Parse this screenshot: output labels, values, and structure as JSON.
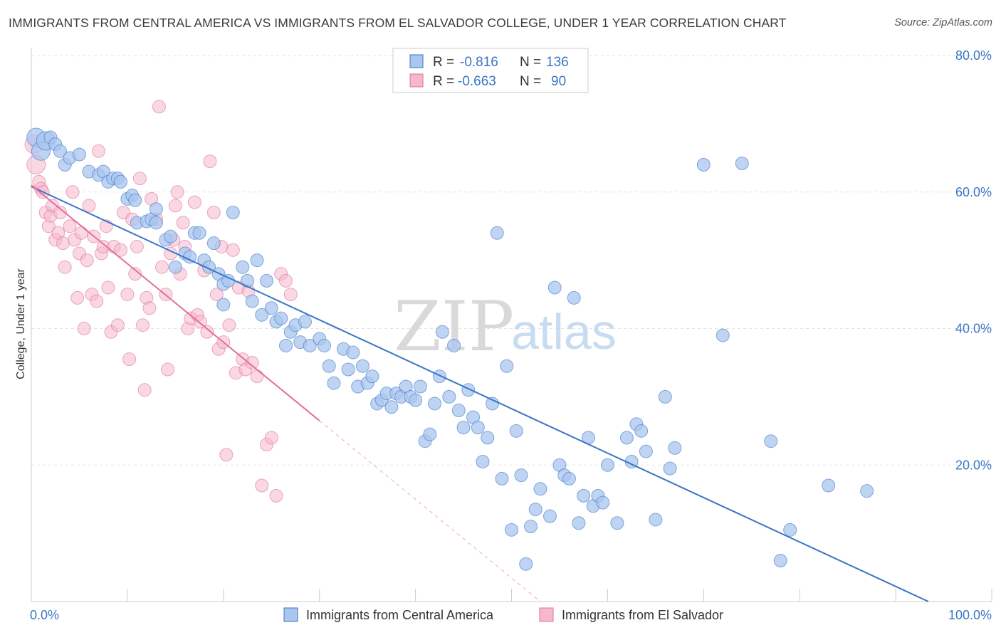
{
  "title": "IMMIGRANTS FROM CENTRAL AMERICA VS IMMIGRANTS FROM EL SALVADOR COLLEGE, UNDER 1 YEAR CORRELATION CHART",
  "source": "Source: ZipAtlas.com",
  "watermark": {
    "zip": "ZIP",
    "atlas": "atlas"
  },
  "colors": {
    "blue": "#3a76c8",
    "blue_fill": "#a9c6ee",
    "pink": "#e0709a",
    "pink_fill": "#f5b8cc"
  },
  "legend": {
    "r_label": "R =",
    "n_label": "N =",
    "rows": [
      {
        "r": "-0.816",
        "n": "136"
      },
      {
        "r": "-0.663",
        "n": "90"
      }
    ]
  },
  "chart_data": {
    "type": "scatter",
    "xlabel": "",
    "ylabel": "College, Under 1 year",
    "xlim": [
      0,
      100
    ],
    "ylim": [
      0,
      80
    ],
    "x_tick_labels": [
      "0.0%",
      "100.0%"
    ],
    "y_ticks": [
      20,
      40,
      60,
      80
    ],
    "y_tick_labels": [
      "20.0%",
      "40.0%",
      "60.0%",
      "80.0%"
    ],
    "grid": true,
    "legend_placement": "top-center",
    "series": [
      {
        "name": "Immigrants from Central America",
        "r": -0.816,
        "n": 136,
        "trend": {
          "x0": 0,
          "y0": 60.8,
          "x1": 93.4,
          "y1": 0
        },
        "points": [
          [
            0.5,
            68
          ],
          [
            1,
            66
          ],
          [
            1.5,
            67.5
          ],
          [
            2,
            68
          ],
          [
            2.5,
            67
          ],
          [
            3,
            66
          ],
          [
            3.5,
            64
          ],
          [
            4,
            65
          ],
          [
            5,
            65.5
          ],
          [
            6,
            63
          ],
          [
            7,
            62.5
          ],
          [
            7.5,
            63
          ],
          [
            8,
            61.5
          ],
          [
            8.5,
            62
          ],
          [
            9,
            62
          ],
          [
            9.3,
            61.5
          ],
          [
            10,
            59
          ],
          [
            10.5,
            59.5
          ],
          [
            10.8,
            58.8
          ],
          [
            11,
            55.5
          ],
          [
            12,
            55.7
          ],
          [
            12.5,
            56
          ],
          [
            13,
            57.5
          ],
          [
            13,
            55.5
          ],
          [
            14,
            53
          ],
          [
            14.5,
            53.5
          ],
          [
            15,
            49
          ],
          [
            16,
            51
          ],
          [
            16.5,
            50.5
          ],
          [
            17,
            54
          ],
          [
            17.5,
            54
          ],
          [
            18,
            50
          ],
          [
            18.5,
            49
          ],
          [
            19,
            52.5
          ],
          [
            19.5,
            48
          ],
          [
            20,
            46.5
          ],
          [
            20,
            43.5
          ],
          [
            20.5,
            47
          ],
          [
            21,
            57
          ],
          [
            22,
            49
          ],
          [
            22.5,
            47
          ],
          [
            23,
            44
          ],
          [
            23.5,
            50
          ],
          [
            24,
            42
          ],
          [
            24.5,
            47
          ],
          [
            25,
            43
          ],
          [
            25.5,
            41
          ],
          [
            26,
            41.5
          ],
          [
            26.5,
            37.5
          ],
          [
            27,
            39.5
          ],
          [
            27.5,
            40.5
          ],
          [
            28,
            38
          ],
          [
            28.5,
            41
          ],
          [
            29,
            37.5
          ],
          [
            30,
            38.5
          ],
          [
            30.5,
            37.5
          ],
          [
            31,
            34.5
          ],
          [
            31.5,
            32
          ],
          [
            32.5,
            37
          ],
          [
            33,
            34
          ],
          [
            33.5,
            36.5
          ],
          [
            34,
            31.5
          ],
          [
            34.5,
            34.5
          ],
          [
            35,
            32
          ],
          [
            35.5,
            33
          ],
          [
            36,
            29
          ],
          [
            36.5,
            29.5
          ],
          [
            37,
            30.5
          ],
          [
            37.5,
            28.5
          ],
          [
            38,
            30.5
          ],
          [
            38.5,
            30
          ],
          [
            39,
            31.5
          ],
          [
            39.5,
            30
          ],
          [
            40,
            29.5
          ],
          [
            40.5,
            31.5
          ],
          [
            41,
            23.5
          ],
          [
            41.5,
            24.5
          ],
          [
            42,
            29
          ],
          [
            42.5,
            33
          ],
          [
            42.8,
            39.5
          ],
          [
            43.5,
            30
          ],
          [
            44,
            37.5
          ],
          [
            44.5,
            28
          ],
          [
            45,
            25.5
          ],
          [
            45.5,
            31
          ],
          [
            46,
            27
          ],
          [
            46.5,
            25.5
          ],
          [
            47,
            20.5
          ],
          [
            47.5,
            24
          ],
          [
            48,
            29
          ],
          [
            48.5,
            54
          ],
          [
            49,
            18
          ],
          [
            49.5,
            34.5
          ],
          [
            50,
            10.5
          ],
          [
            50.5,
            25
          ],
          [
            51,
            18.5
          ],
          [
            51.5,
            5.5
          ],
          [
            52,
            11
          ],
          [
            52.5,
            13.5
          ],
          [
            53,
            16.5
          ],
          [
            54,
            12.5
          ],
          [
            54.5,
            46
          ],
          [
            55,
            20
          ],
          [
            55.5,
            18.5
          ],
          [
            56,
            18
          ],
          [
            56.5,
            44.5
          ],
          [
            57,
            11.5
          ],
          [
            57.5,
            15.5
          ],
          [
            58,
            24
          ],
          [
            58.5,
            14
          ],
          [
            59,
            15.5
          ],
          [
            59.5,
            14.5
          ],
          [
            60,
            20
          ],
          [
            61,
            11.5
          ],
          [
            62,
            24
          ],
          [
            62.5,
            20.5
          ],
          [
            63,
            26
          ],
          [
            63.5,
            25
          ],
          [
            64,
            22
          ],
          [
            65,
            12
          ],
          [
            66,
            30
          ],
          [
            66.5,
            19.5
          ],
          [
            67,
            22.5
          ],
          [
            70,
            64
          ],
          [
            72,
            39
          ],
          [
            74,
            64.2
          ],
          [
            77,
            23.5
          ],
          [
            78,
            6
          ],
          [
            79,
            10.5
          ],
          [
            83,
            17
          ],
          [
            87,
            16.2
          ]
        ]
      },
      {
        "name": "Immigrants from El Salvador",
        "r": -0.663,
        "n": 90,
        "trend": {
          "x0": 0,
          "y0": 61,
          "x1": 30,
          "y1": 26.5
        },
        "trend_dashed": {
          "x0": 30,
          "y0": 26.5,
          "x1": 53,
          "y1": 0
        },
        "points": [
          [
            0.3,
            67
          ],
          [
            0.5,
            64
          ],
          [
            0.8,
            61.5
          ],
          [
            1,
            60.5
          ],
          [
            1.2,
            60
          ],
          [
            1.5,
            57
          ],
          [
            1.8,
            55
          ],
          [
            2,
            56.5
          ],
          [
            2.2,
            58
          ],
          [
            2.5,
            53
          ],
          [
            2.8,
            54
          ],
          [
            3,
            57
          ],
          [
            3.3,
            52.5
          ],
          [
            3.5,
            49
          ],
          [
            4,
            55
          ],
          [
            4.3,
            60
          ],
          [
            4.5,
            53
          ],
          [
            4.8,
            44.5
          ],
          [
            5,
            51
          ],
          [
            5.2,
            54
          ],
          [
            5.5,
            40
          ],
          [
            5.8,
            50
          ],
          [
            6,
            58
          ],
          [
            6.3,
            45
          ],
          [
            6.5,
            53.5
          ],
          [
            6.8,
            44
          ],
          [
            7,
            66
          ],
          [
            7.3,
            51
          ],
          [
            7.5,
            52
          ],
          [
            7.8,
            55
          ],
          [
            8,
            46
          ],
          [
            8.3,
            39.5
          ],
          [
            8.6,
            52
          ],
          [
            9,
            40.5
          ],
          [
            9.3,
            51.5
          ],
          [
            9.6,
            57
          ],
          [
            10,
            45
          ],
          [
            10.2,
            35.5
          ],
          [
            10.5,
            56
          ],
          [
            10.8,
            48
          ],
          [
            11,
            52
          ],
          [
            11.3,
            62
          ],
          [
            11.6,
            40.5
          ],
          [
            11.8,
            31
          ],
          [
            12,
            44.5
          ],
          [
            12.3,
            43
          ],
          [
            12.5,
            59
          ],
          [
            13,
            56
          ],
          [
            13.3,
            72.5
          ],
          [
            13.6,
            49
          ],
          [
            14,
            45
          ],
          [
            14.2,
            34
          ],
          [
            14.5,
            51
          ],
          [
            14.8,
            53
          ],
          [
            15,
            58
          ],
          [
            15.2,
            60
          ],
          [
            15.5,
            48
          ],
          [
            15.8,
            55.5
          ],
          [
            16,
            52
          ],
          [
            16.3,
            40
          ],
          [
            16.6,
            41.5
          ],
          [
            17,
            58.5
          ],
          [
            17.3,
            42
          ],
          [
            17.6,
            41
          ],
          [
            18,
            48.5
          ],
          [
            18.3,
            39.5
          ],
          [
            18.6,
            64.5
          ],
          [
            19,
            57
          ],
          [
            19.3,
            45
          ],
          [
            19.5,
            37
          ],
          [
            19.8,
            52
          ],
          [
            20,
            38
          ],
          [
            20.3,
            21.5
          ],
          [
            20.6,
            40.5
          ],
          [
            21,
            51.5
          ],
          [
            21.3,
            33.5
          ],
          [
            21.6,
            46
          ],
          [
            22,
            35.5
          ],
          [
            22.3,
            34
          ],
          [
            22.6,
            45.5
          ],
          [
            23,
            35
          ],
          [
            23.5,
            33
          ],
          [
            24,
            17
          ],
          [
            24.5,
            23
          ],
          [
            25,
            24
          ],
          [
            25.5,
            15.5
          ],
          [
            26,
            48
          ],
          [
            26.5,
            47
          ],
          [
            27,
            45
          ]
        ]
      }
    ]
  }
}
